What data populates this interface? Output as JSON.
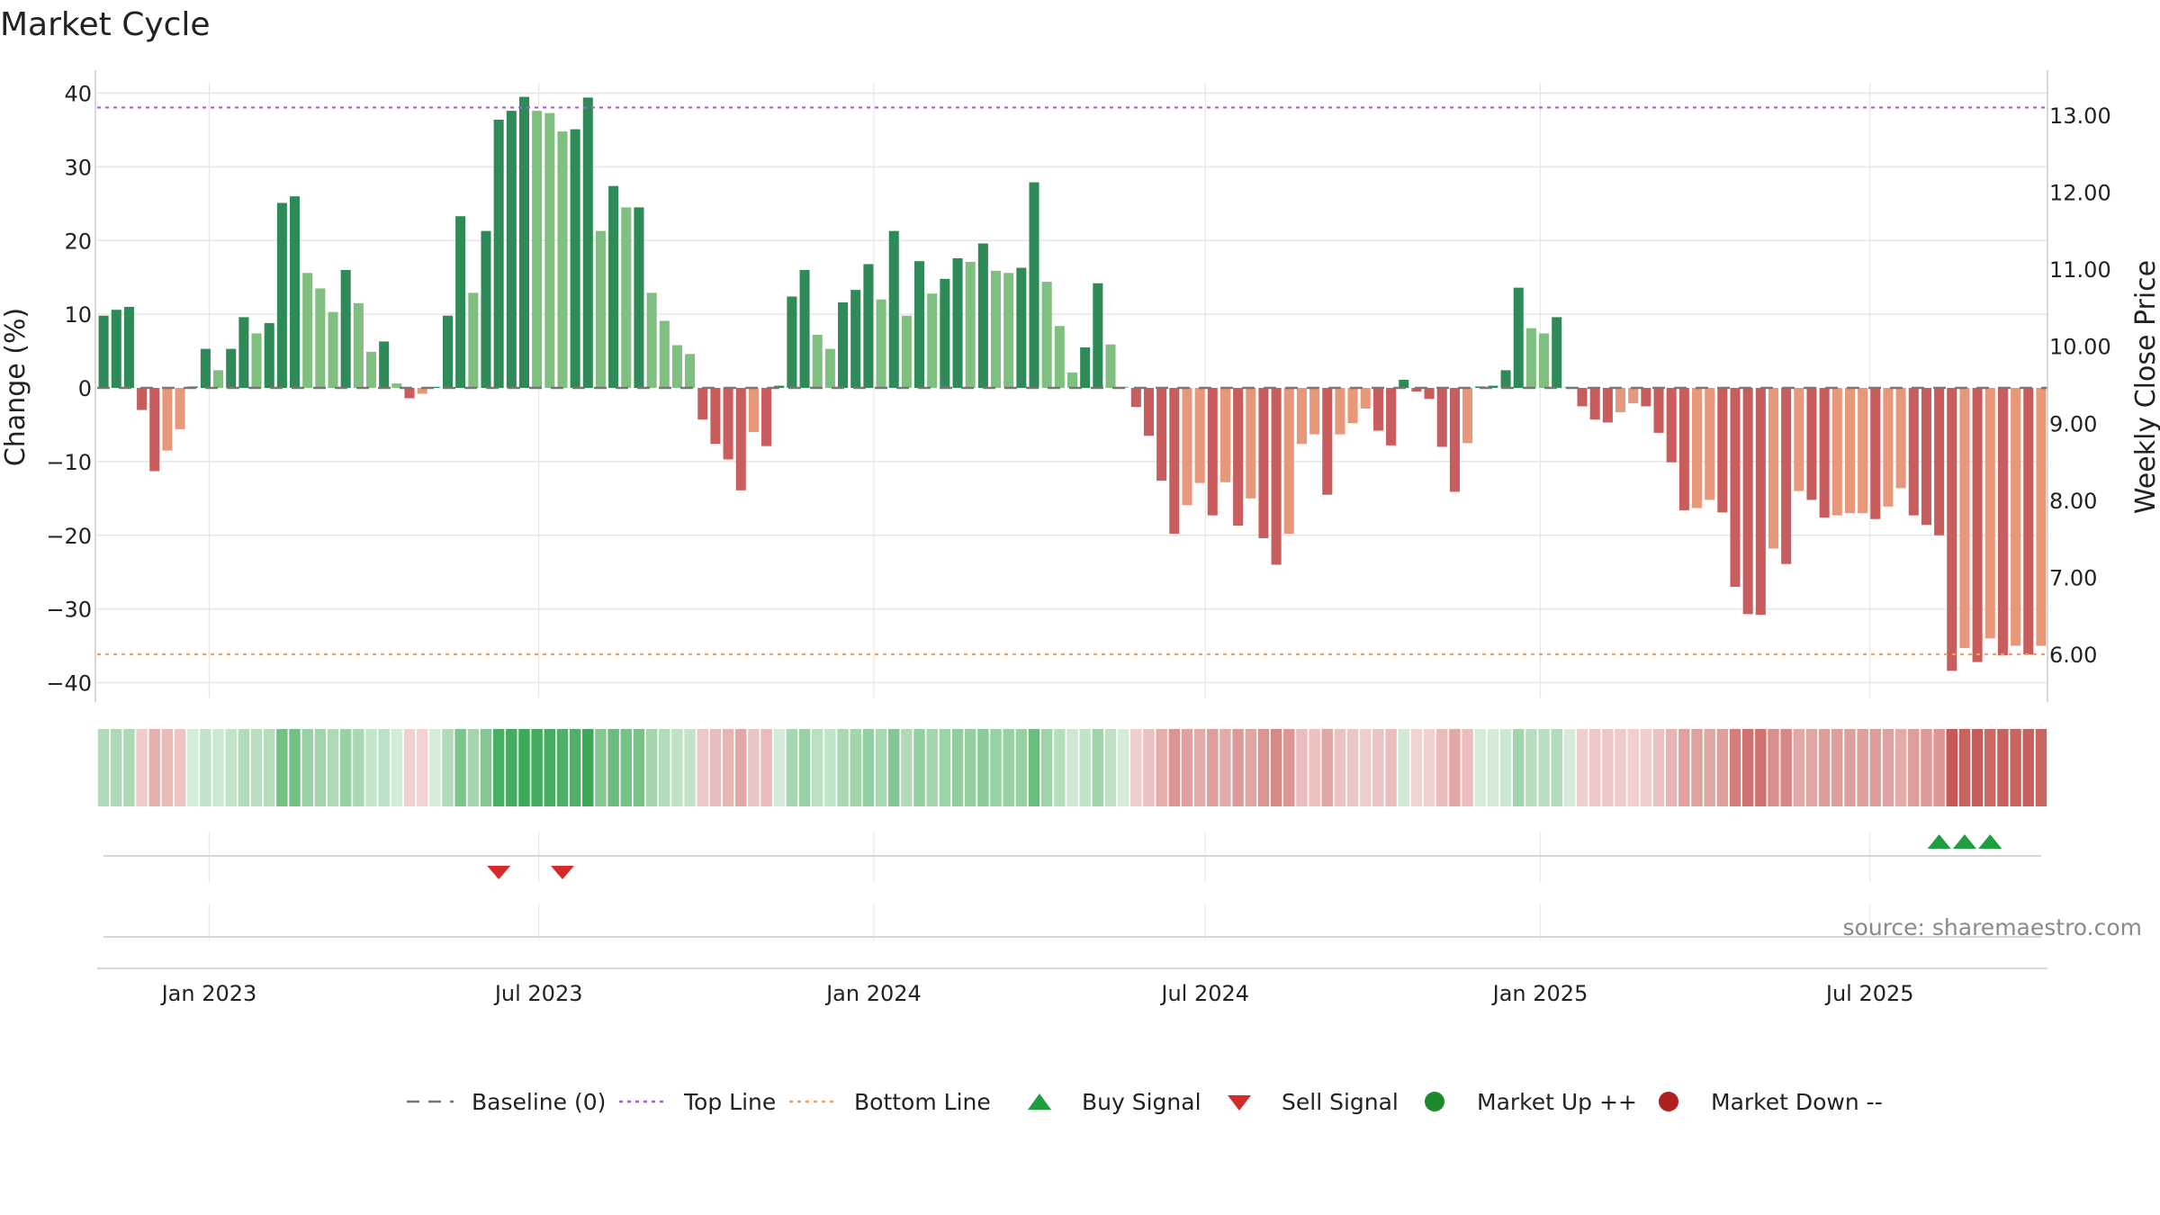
{
  "chart_data": {
    "type": "bar",
    "title": "Market Cycle",
    "ylabel": "Change (%)",
    "y2label": "Weekly Close Price",
    "ylim": [
      -43,
      43
    ],
    "y2lim": [
      5.4,
      13.4
    ],
    "y_ticks": [
      "40",
      "30",
      "20",
      "10",
      "0",
      "−10",
      "−20",
      "−30",
      "−40"
    ],
    "y2_ticks": [
      "13.00",
      "12.00",
      "11.00",
      "10.00",
      "9.00",
      "8.00",
      "7.00",
      "6.00"
    ],
    "x_ticks": [
      {
        "label": "Jan 2023",
        "date": "2023-01-01"
      },
      {
        "label": "Jul 2023",
        "date": "2023-07-01"
      },
      {
        "label": "Jan 2024",
        "date": "2024-01-01"
      },
      {
        "label": "Jul 2024",
        "date": "2024-07-01"
      },
      {
        "label": "Jan 2025",
        "date": "2025-01-01"
      },
      {
        "label": "Jul 2025",
        "date": "2025-07-01"
      }
    ],
    "start_date": "2022-11-04",
    "weekly_change": [
      9.8,
      10.6,
      11.0,
      -3.0,
      -11.3,
      -8.5,
      -5.6,
      0.2,
      5.3,
      2.4,
      5.3,
      9.6,
      7.4,
      8.8,
      25.1,
      26.0,
      15.6,
      13.5,
      10.3,
      16.0,
      11.5,
      4.9,
      6.3,
      0.6,
      -1.4,
      -0.8,
      0.0,
      9.8,
      23.3,
      12.9,
      21.3,
      36.4,
      37.6,
      39.5,
      37.6,
      37.3,
      34.8,
      35.1,
      39.4,
      21.3,
      27.4,
      24.5,
      24.5,
      12.9,
      9.1,
      5.8,
      4.6,
      -4.3,
      -7.6,
      -9.7,
      -13.9,
      -6.0,
      -7.9,
      0.3,
      12.4,
      16.0,
      7.2,
      5.3,
      11.6,
      13.3,
      16.8,
      12.0,
      21.3,
      9.8,
      17.2,
      12.8,
      14.8,
      17.6,
      17.1,
      19.6,
      15.9,
      15.6,
      16.3,
      27.9,
      14.4,
      8.4,
      2.1,
      5.5,
      14.2,
      5.9,
      0.0,
      -2.6,
      -6.5,
      -12.6,
      -19.8,
      -15.9,
      -12.9,
      -17.3,
      -12.8,
      -18.7,
      -15.0,
      -20.4,
      -24.0,
      -19.8,
      -7.6,
      -6.3,
      -14.5,
      -6.3,
      -4.8,
      -2.8,
      -5.8,
      -7.8,
      1.1,
      -0.5,
      -1.5,
      -8.0,
      -14.1,
      -7.5,
      0.2,
      0.3,
      2.4,
      13.6,
      8.1,
      7.4,
      9.6,
      0.0,
      -2.5,
      -4.3,
      -4.7,
      -3.3,
      -2.1,
      -2.5,
      -6.1,
      -10.1,
      -16.6,
      -16.3,
      -15.2,
      -16.9,
      -27.0,
      -30.7,
      -30.8,
      -21.8,
      -23.9,
      -14.0,
      -15.2,
      -17.6,
      -17.3,
      -17.0,
      -17.0,
      -17.8,
      -16.1,
      -13.6,
      -17.3,
      -18.6,
      -20.0,
      -38.4,
      -35.3,
      -37.2,
      -34.0,
      -36.3,
      -35.0,
      -36.2,
      -35.0
    ],
    "reference_lines": [
      {
        "name": "Baseline (0)",
        "value": 0,
        "axis": "left",
        "color": "#777777",
        "style": "dashed"
      },
      {
        "name": "Top Line",
        "value": 13.1,
        "axis": "right",
        "color": "#a55fd1",
        "style": "dotted"
      },
      {
        "name": "Bottom Line",
        "value": 6.0,
        "axis": "right",
        "color": "#f0a060",
        "style": "dotted"
      }
    ],
    "buy_signal_weeks": [
      144,
      146,
      148
    ],
    "sell_signal_weeks": [
      31,
      36
    ],
    "colors": {
      "up_strong": "#2e8b57",
      "up_light": "#7fbf7f",
      "down_strong": "#c95c5c",
      "down_light": "#e8987a",
      "buy": "#1e9e3e",
      "sell": "#d62a2a",
      "market_up": "#1e8a2e",
      "market_down": "#b02020",
      "grid": "#e6e6e6"
    },
    "source": "source: sharemaestro.com",
    "legend": [
      {
        "label": "Baseline (0)",
        "kind": "dashed-line",
        "color": "#777777"
      },
      {
        "label": "Top Line",
        "kind": "dotted-line",
        "color": "#a55fd1"
      },
      {
        "label": "Bottom Line",
        "kind": "dotted-line",
        "color": "#f0a060"
      },
      {
        "label": "Buy Signal",
        "kind": "triangle-up",
        "color": "#1e9e3e"
      },
      {
        "label": "Sell Signal",
        "kind": "triangle-down",
        "color": "#d62a2a"
      },
      {
        "label": "Market Up ++",
        "kind": "circle",
        "color": "#1e8a2e"
      },
      {
        "label": "Market Down --",
        "kind": "circle",
        "color": "#b02020"
      }
    ]
  }
}
